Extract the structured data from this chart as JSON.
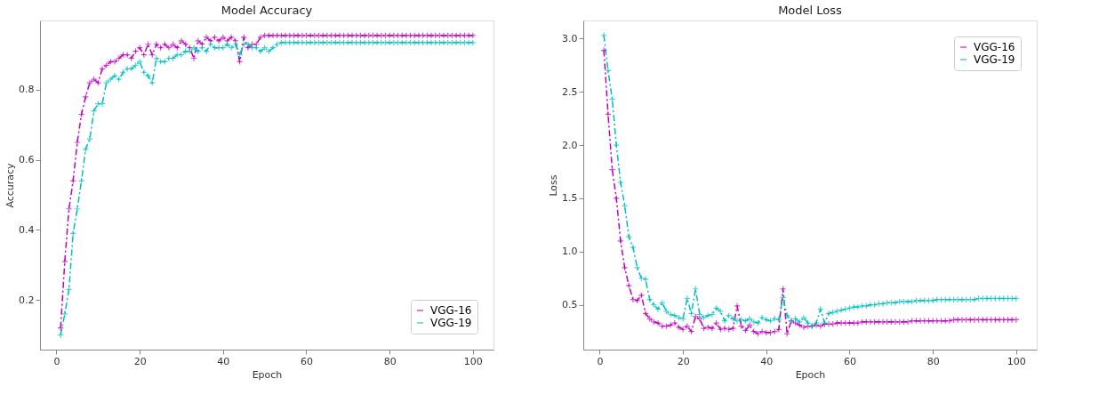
{
  "chart_data": [
    {
      "type": "line",
      "title": "Model Accuracy",
      "xlabel": "Epoch",
      "ylabel": "Accuracy",
      "legend": "bottom right",
      "line_style": "dashed",
      "marker": "cross",
      "grid": false,
      "x": [
        1,
        2,
        3,
        4,
        5,
        6,
        7,
        8,
        9,
        10,
        11,
        12,
        13,
        14,
        15,
        16,
        17,
        18,
        19,
        20,
        21,
        22,
        23,
        24,
        25,
        26,
        27,
        28,
        29,
        30,
        31,
        32,
        33,
        34,
        35,
        36,
        37,
        38,
        39,
        40,
        41,
        42,
        43,
        44,
        45,
        46,
        47,
        48,
        49,
        50,
        51,
        52,
        53,
        54,
        55,
        56,
        57,
        58,
        59,
        60,
        61,
        62,
        63,
        64,
        65,
        66,
        67,
        68,
        69,
        70,
        71,
        72,
        73,
        74,
        75,
        76,
        77,
        78,
        79,
        80,
        81,
        82,
        83,
        84,
        85,
        86,
        87,
        88,
        89,
        90,
        91,
        92,
        93,
        94,
        95,
        96,
        97,
        98,
        99,
        100
      ],
      "xlim": [
        -3.95,
        104.95
      ],
      "xticks": [
        0,
        20,
        40,
        60,
        80,
        100
      ],
      "ylim": [
        0.058,
        0.998
      ],
      "yticks": [
        0.2,
        0.4,
        0.6,
        0.8
      ],
      "series": [
        {
          "name": "VGG-16",
          "color": "#bf00bf",
          "values": [
            0.12,
            0.31,
            0.46,
            0.54,
            0.65,
            0.73,
            0.78,
            0.82,
            0.83,
            0.82,
            0.86,
            0.87,
            0.88,
            0.88,
            0.89,
            0.9,
            0.9,
            0.89,
            0.91,
            0.92,
            0.9,
            0.93,
            0.9,
            0.93,
            0.92,
            0.93,
            0.92,
            0.93,
            0.92,
            0.94,
            0.93,
            0.92,
            0.89,
            0.94,
            0.93,
            0.95,
            0.94,
            0.95,
            0.94,
            0.95,
            0.94,
            0.95,
            0.94,
            0.88,
            0.95,
            0.92,
            0.93,
            0.93,
            0.95,
            0.955,
            0.955,
            0.955,
            0.955,
            0.955,
            0.955,
            0.955,
            0.955,
            0.955,
            0.955,
            0.955,
            0.955,
            0.955,
            0.955,
            0.955,
            0.955,
            0.955,
            0.955,
            0.955,
            0.955,
            0.955,
            0.955,
            0.955,
            0.955,
            0.955,
            0.955,
            0.955,
            0.955,
            0.955,
            0.955,
            0.955,
            0.955,
            0.955,
            0.955,
            0.955,
            0.955,
            0.955,
            0.955,
            0.955,
            0.955,
            0.955,
            0.955,
            0.955,
            0.955,
            0.955,
            0.955,
            0.955,
            0.955,
            0.955,
            0.955,
            0.955
          ]
        },
        {
          "name": "VGG-19",
          "color": "#00bfbf",
          "values": [
            0.1,
            0.16,
            0.23,
            0.39,
            0.46,
            0.54,
            0.63,
            0.66,
            0.74,
            0.76,
            0.76,
            0.82,
            0.83,
            0.84,
            0.83,
            0.85,
            0.86,
            0.86,
            0.87,
            0.88,
            0.85,
            0.84,
            0.82,
            0.89,
            0.88,
            0.88,
            0.89,
            0.89,
            0.9,
            0.9,
            0.91,
            0.91,
            0.92,
            0.91,
            0.92,
            0.91,
            0.93,
            0.92,
            0.92,
            0.92,
            0.93,
            0.92,
            0.93,
            0.9,
            0.93,
            0.93,
            0.92,
            0.92,
            0.91,
            0.92,
            0.91,
            0.92,
            0.93,
            0.935,
            0.935,
            0.935,
            0.935,
            0.935,
            0.935,
            0.935,
            0.935,
            0.935,
            0.935,
            0.935,
            0.935,
            0.935,
            0.935,
            0.935,
            0.935,
            0.935,
            0.935,
            0.935,
            0.935,
            0.935,
            0.935,
            0.935,
            0.935,
            0.935,
            0.935,
            0.935,
            0.935,
            0.935,
            0.935,
            0.935,
            0.935,
            0.935,
            0.935,
            0.935,
            0.935,
            0.935,
            0.935,
            0.935,
            0.935,
            0.935,
            0.935,
            0.935,
            0.935,
            0.935,
            0.935,
            0.935
          ]
        }
      ]
    },
    {
      "type": "line",
      "title": "Model Loss",
      "xlabel": "Epoch",
      "ylabel": "Loss",
      "legend": "top right",
      "line_style": "dashed",
      "marker": "cross",
      "grid": false,
      "x": [
        1,
        2,
        3,
        4,
        5,
        6,
        7,
        8,
        9,
        10,
        11,
        12,
        13,
        14,
        15,
        16,
        17,
        18,
        19,
        20,
        21,
        22,
        23,
        24,
        25,
        26,
        27,
        28,
        29,
        30,
        31,
        32,
        33,
        34,
        35,
        36,
        37,
        38,
        39,
        40,
        41,
        42,
        43,
        44,
        45,
        46,
        47,
        48,
        49,
        50,
        51,
        52,
        53,
        54,
        55,
        56,
        57,
        58,
        59,
        60,
        61,
        62,
        63,
        64,
        65,
        66,
        67,
        68,
        69,
        70,
        71,
        72,
        73,
        74,
        75,
        76,
        77,
        78,
        79,
        80,
        81,
        82,
        83,
        84,
        85,
        86,
        87,
        88,
        89,
        90,
        91,
        92,
        93,
        94,
        95,
        96,
        97,
        98,
        99,
        100
      ],
      "xlim": [
        -3.95,
        104.95
      ],
      "xticks": [
        0,
        20,
        40,
        60,
        80,
        100
      ],
      "ylim": [
        0.08,
        3.17
      ],
      "yticks": [
        0.5,
        {
          "value": 1,
          "label": "1.0"
        },
        1.5,
        {
          "value": 2,
          "label": "2.0"
        },
        2.5,
        {
          "value": 3,
          "label": "3.0"
        }
      ],
      "series": [
        {
          "name": "VGG-16",
          "color": "#bf00bf",
          "values": [
            2.89,
            2.29,
            1.77,
            1.5,
            1.1,
            0.85,
            0.68,
            0.55,
            0.54,
            0.59,
            0.42,
            0.37,
            0.34,
            0.33,
            0.3,
            0.3,
            0.31,
            0.33,
            0.29,
            0.27,
            0.3,
            0.25,
            0.39,
            0.37,
            0.28,
            0.29,
            0.28,
            0.33,
            0.27,
            0.28,
            0.27,
            0.28,
            0.49,
            0.3,
            0.26,
            0.31,
            0.25,
            0.23,
            0.25,
            0.24,
            0.24,
            0.25,
            0.27,
            0.65,
            0.23,
            0.35,
            0.33,
            0.31,
            0.29,
            0.3,
            0.3,
            0.31,
            0.3,
            0.32,
            0.32,
            0.32,
            0.33,
            0.33,
            0.33,
            0.33,
            0.33,
            0.33,
            0.34,
            0.34,
            0.34,
            0.34,
            0.34,
            0.34,
            0.34,
            0.34,
            0.34,
            0.34,
            0.34,
            0.34,
            0.35,
            0.35,
            0.35,
            0.35,
            0.35,
            0.35,
            0.35,
            0.35,
            0.35,
            0.35,
            0.36,
            0.36,
            0.36,
            0.36,
            0.36,
            0.36,
            0.36,
            0.36,
            0.36,
            0.36,
            0.36,
            0.36,
            0.36,
            0.36,
            0.36,
            0.36
          ]
        },
        {
          "name": "VGG-19",
          "color": "#00bfbf",
          "values": [
            3.03,
            2.7,
            2.43,
            2.0,
            1.65,
            1.43,
            1.14,
            1.04,
            0.85,
            0.75,
            0.74,
            0.55,
            0.5,
            0.46,
            0.52,
            0.44,
            0.41,
            0.4,
            0.38,
            0.37,
            0.56,
            0.42,
            0.65,
            0.41,
            0.38,
            0.4,
            0.41,
            0.47,
            0.44,
            0.35,
            0.4,
            0.37,
            0.35,
            0.36,
            0.35,
            0.37,
            0.34,
            0.33,
            0.38,
            0.36,
            0.35,
            0.37,
            0.36,
            0.57,
            0.4,
            0.35,
            0.37,
            0.34,
            0.38,
            0.33,
            0.3,
            0.33,
            0.46,
            0.33,
            0.42,
            0.43,
            0.44,
            0.45,
            0.46,
            0.47,
            0.48,
            0.48,
            0.49,
            0.49,
            0.5,
            0.5,
            0.51,
            0.51,
            0.52,
            0.52,
            0.52,
            0.53,
            0.53,
            0.53,
            0.53,
            0.54,
            0.54,
            0.54,
            0.54,
            0.54,
            0.55,
            0.55,
            0.55,
            0.55,
            0.55,
            0.55,
            0.55,
            0.55,
            0.55,
            0.55,
            0.56,
            0.56,
            0.56,
            0.56,
            0.56,
            0.56,
            0.56,
            0.56,
            0.56,
            0.56
          ]
        }
      ]
    }
  ]
}
